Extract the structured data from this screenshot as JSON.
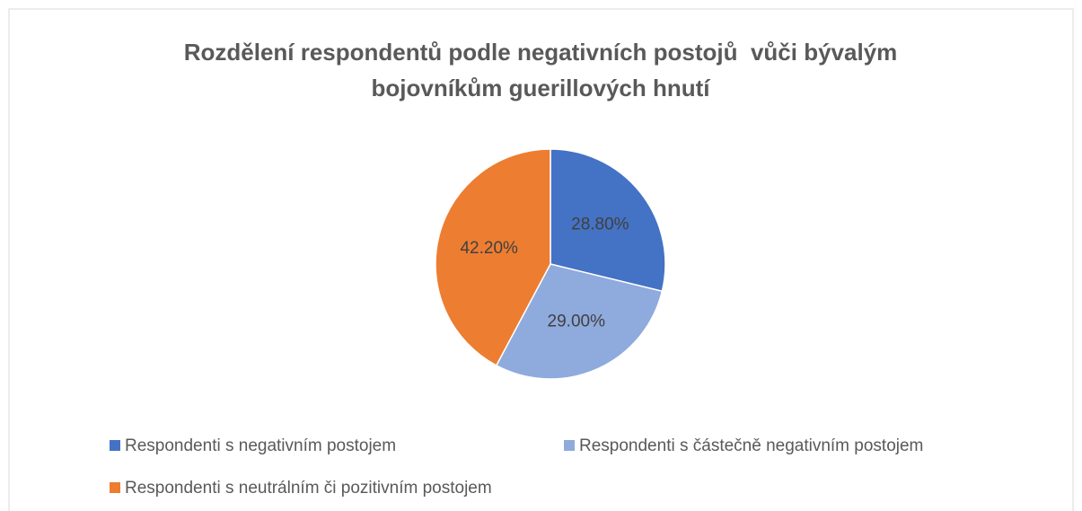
{
  "chart_data": {
    "type": "pie",
    "title": "Rozdělení respondentů podle negativních postojů  vůči bývalým bojovníkům guerillových hnutí",
    "categories": [
      "Respondenti s negativním postojem",
      "Respondenti s částečně negativním postojem",
      "Respondenti s neutrálním či pozitivním postojem"
    ],
    "values": [
      28.8,
      29.0,
      42.2
    ],
    "value_labels": [
      "28.80%",
      "29.00%",
      "42.20%"
    ],
    "colors": [
      "#4472c4",
      "#8faadc",
      "#ed7d31"
    ],
    "legend": "bottom"
  }
}
